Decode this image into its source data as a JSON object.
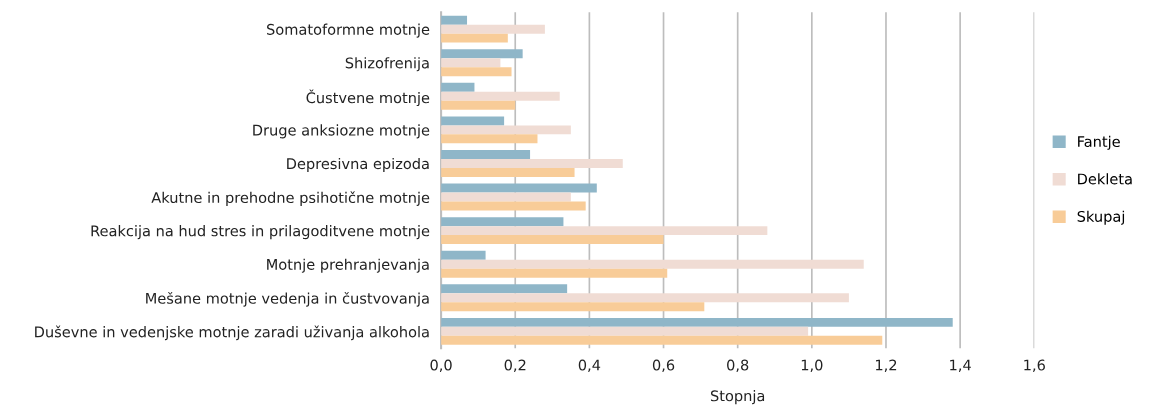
{
  "chart_data": {
    "type": "bar",
    "orientation": "horizontal",
    "xlabel": "Stopnja",
    "categories": [
      "Somatoformne motnje",
      "Shizofrenija",
      "Čustvene motnje",
      "Druge anksiozne motnje",
      "Depresivna epizoda",
      "Akutne in prehodne psihotične motnje",
      "Reakcija na hud stres in prilagoditvene motnje",
      "Motnje prehranjevanja",
      "Mešane motnje vedenja in čustvovanja",
      "Duševne in vedenjske motnje zaradi uživanja alkohola"
    ],
    "series": [
      {
        "name": "Fantje",
        "color": "#8fb6c8",
        "values": [
          0.07,
          0.22,
          0.09,
          0.17,
          0.24,
          0.42,
          0.33,
          0.12,
          0.34,
          1.38
        ]
      },
      {
        "name": "Dekleta",
        "color": "#f0dcd4",
        "values": [
          0.28,
          0.16,
          0.32,
          0.35,
          0.49,
          0.35,
          0.88,
          1.14,
          1.1,
          0.99
        ]
      },
      {
        "name": "Skupaj",
        "color": "#f8cc98",
        "values": [
          0.18,
          0.19,
          0.2,
          0.26,
          0.36,
          0.39,
          0.6,
          0.61,
          0.71,
          1.19
        ]
      }
    ],
    "xlim": [
      0,
      1.6
    ],
    "xticks": [
      {
        "value": 0,
        "label": "0,0"
      },
      {
        "value": 0.2,
        "label": "0,2"
      },
      {
        "value": 0.4,
        "label": "0,4"
      },
      {
        "value": 0.6,
        "label": "0,6"
      },
      {
        "value": 0.8,
        "label": "0,8"
      },
      {
        "value": 1.0,
        "label": "1,0"
      },
      {
        "value": 1.2,
        "label": "1,2"
      },
      {
        "value": 1.4,
        "label": "1,4"
      },
      {
        "value": 1.6,
        "label": "1,6"
      }
    ],
    "grid": "x",
    "legend": "right"
  }
}
